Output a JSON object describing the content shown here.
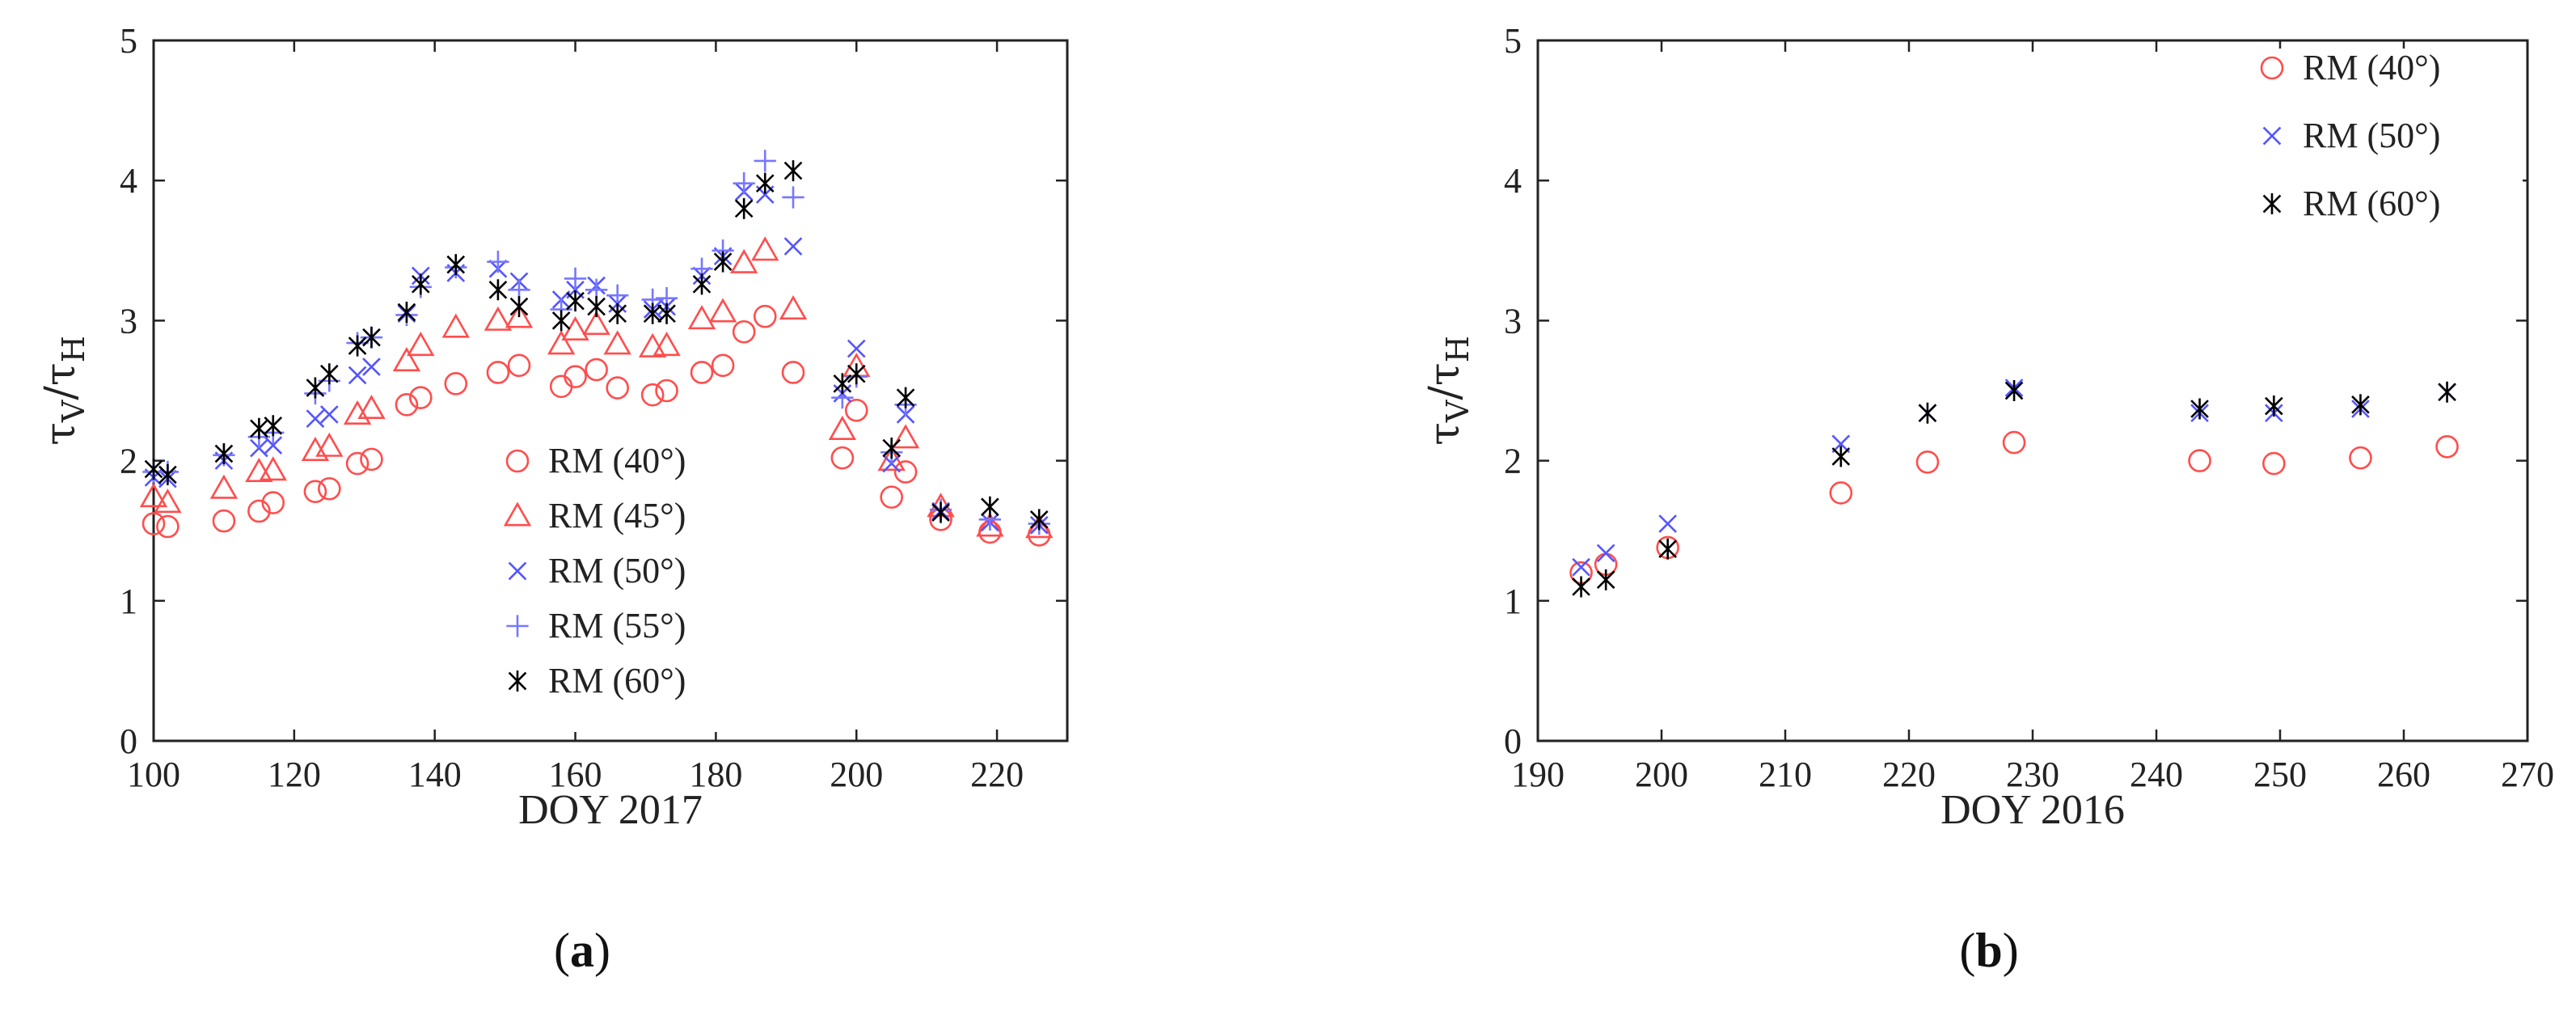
{
  "chart_data": [
    {
      "type": "scatter",
      "caption_letter": "a",
      "xlabel": "DOY 2017",
      "ylabel": {
        "tau": "τ",
        "sub_v": "V",
        "slash": "/",
        "sub_h": "H"
      },
      "xlim": [
        100,
        230
      ],
      "ylim": [
        0,
        5
      ],
      "xticks": [
        100,
        120,
        140,
        160,
        180,
        200,
        220
      ],
      "yticks": [
        0,
        1,
        2,
        3,
        4,
        5
      ],
      "grid": false,
      "legend_position": "center",
      "series": [
        {
          "name": "RM (40°)",
          "marker": "circle",
          "color": "#ff4d4d",
          "x": [
            100,
            102,
            110,
            115,
            117,
            123,
            125,
            129,
            131,
            136,
            138,
            143,
            149,
            152,
            158,
            160,
            163,
            166,
            171,
            173,
            178,
            181,
            184,
            187,
            191,
            198,
            200,
            205,
            207,
            212,
            219,
            226
          ],
          "y": [
            1.55,
            1.53,
            1.57,
            1.64,
            1.7,
            1.78,
            1.8,
            1.98,
            2.01,
            2.4,
            2.45,
            2.55,
            2.63,
            2.68,
            2.53,
            2.6,
            2.65,
            2.52,
            2.47,
            2.5,
            2.63,
            2.68,
            2.92,
            3.03,
            2.63,
            2.02,
            2.36,
            1.74,
            1.92,
            1.58,
            1.49,
            1.47
          ]
        },
        {
          "name": "RM (45°)",
          "marker": "triangle",
          "color": "#ff4d4d",
          "x": [
            100,
            102,
            110,
            115,
            117,
            123,
            125,
            129,
            131,
            136,
            138,
            143,
            149,
            152,
            158,
            160,
            163,
            166,
            171,
            173,
            178,
            181,
            184,
            187,
            191,
            198,
            200,
            205,
            207,
            212,
            219,
            226
          ],
          "y": [
            1.74,
            1.7,
            1.8,
            1.92,
            1.93,
            2.07,
            2.1,
            2.33,
            2.37,
            2.71,
            2.82,
            2.95,
            3.0,
            3.02,
            2.83,
            2.93,
            2.97,
            2.83,
            2.81,
            2.82,
            3.01,
            3.06,
            3.41,
            3.5,
            3.08,
            2.22,
            2.67,
            2.0,
            2.16,
            1.67,
            1.53,
            1.52
          ]
        },
        {
          "name": "RM (50°)",
          "marker": "x",
          "color": "#5555ff",
          "x": [
            100,
            102,
            110,
            115,
            117,
            123,
            125,
            129,
            131,
            136,
            138,
            143,
            149,
            152,
            158,
            160,
            163,
            166,
            171,
            173,
            178,
            181,
            184,
            187,
            191,
            198,
            200,
            205,
            207,
            212,
            219,
            226
          ],
          "y": [
            1.88,
            1.87,
            2.0,
            2.09,
            2.11,
            2.3,
            2.33,
            2.61,
            2.67,
            3.05,
            3.32,
            3.34,
            3.37,
            3.28,
            3.15,
            3.22,
            3.25,
            3.12,
            3.08,
            3.1,
            3.32,
            3.46,
            3.92,
            3.9,
            3.53,
            2.48,
            2.8,
            1.98,
            2.33,
            1.64,
            1.56,
            1.54
          ]
        },
        {
          "name": "RM (55°)",
          "marker": "plus",
          "color": "#7777ff",
          "x": [
            100,
            102,
            110,
            115,
            117,
            123,
            125,
            129,
            131,
            136,
            138,
            143,
            149,
            152,
            158,
            160,
            163,
            166,
            171,
            173,
            178,
            181,
            184,
            187,
            191,
            198,
            200,
            205,
            207,
            212,
            219,
            226
          ],
          "y": [
            1.92,
            1.92,
            2.04,
            2.17,
            2.2,
            2.48,
            2.57,
            2.84,
            2.88,
            3.04,
            3.24,
            3.38,
            3.42,
            3.22,
            3.08,
            3.3,
            3.22,
            3.18,
            3.15,
            3.16,
            3.37,
            3.5,
            3.98,
            4.14,
            3.88,
            2.45,
            2.6,
            2.06,
            2.4,
            1.65,
            1.58,
            1.55
          ]
        },
        {
          "name": "RM (60°)",
          "marker": "star",
          "color": "#000000",
          "x": [
            100,
            102,
            110,
            115,
            117,
            123,
            125,
            129,
            131,
            136,
            138,
            143,
            149,
            152,
            158,
            160,
            163,
            166,
            171,
            173,
            178,
            181,
            184,
            187,
            191,
            198,
            200,
            205,
            207,
            212,
            219,
            226
          ],
          "y": [
            1.94,
            1.9,
            2.05,
            2.23,
            2.25,
            2.52,
            2.62,
            2.82,
            2.88,
            3.06,
            3.26,
            3.4,
            3.22,
            3.1,
            3.0,
            3.14,
            3.1,
            3.05,
            3.05,
            3.05,
            3.26,
            3.42,
            3.8,
            3.98,
            4.07,
            2.55,
            2.62,
            2.09,
            2.45,
            1.63,
            1.67,
            1.58
          ]
        }
      ]
    },
    {
      "type": "scatter",
      "caption_letter": "b",
      "xlabel": "DOY 2016",
      "ylabel": {
        "tau": "τ",
        "sub_v": "V",
        "slash": "/",
        "sub_h": "H"
      },
      "xlim": [
        190,
        270
      ],
      "ylim": [
        0,
        5
      ],
      "xticks": [
        190,
        200,
        210,
        220,
        230,
        240,
        250,
        260,
        270
      ],
      "yticks": [
        0,
        1,
        2,
        3,
        4,
        5
      ],
      "grid": false,
      "legend_position": "top-right",
      "series": [
        {
          "name": "RM (40°)",
          "marker": "circle",
          "color": "#ff4d4d",
          "x": [
            193.5,
            195.5,
            200.5,
            214.5,
            221.5,
            228.5,
            243.5,
            249.5,
            256.5,
            263.5
          ],
          "y": [
            1.2,
            1.26,
            1.38,
            1.77,
            1.99,
            2.13,
            2.0,
            1.98,
            2.02,
            2.1
          ]
        },
        {
          "name": "RM (50°)",
          "marker": "x",
          "color": "#5555ff",
          "x": [
            193.5,
            195.5,
            200.5,
            214.5,
            221.5,
            228.5,
            243.5,
            249.5,
            256.5,
            263.5
          ],
          "y": [
            1.24,
            1.34,
            1.55,
            2.12,
            2.34,
            2.52,
            2.34,
            2.34,
            2.37,
            2.49
          ]
        },
        {
          "name": "RM (60°)",
          "marker": "star",
          "color": "#000000",
          "x": [
            193.5,
            195.5,
            200.5,
            214.5,
            221.5,
            228.5,
            243.5,
            249.5,
            256.5,
            263.5
          ],
          "y": [
            1.1,
            1.15,
            1.37,
            2.03,
            2.34,
            2.5,
            2.37,
            2.39,
            2.4,
            2.49
          ]
        }
      ]
    }
  ]
}
